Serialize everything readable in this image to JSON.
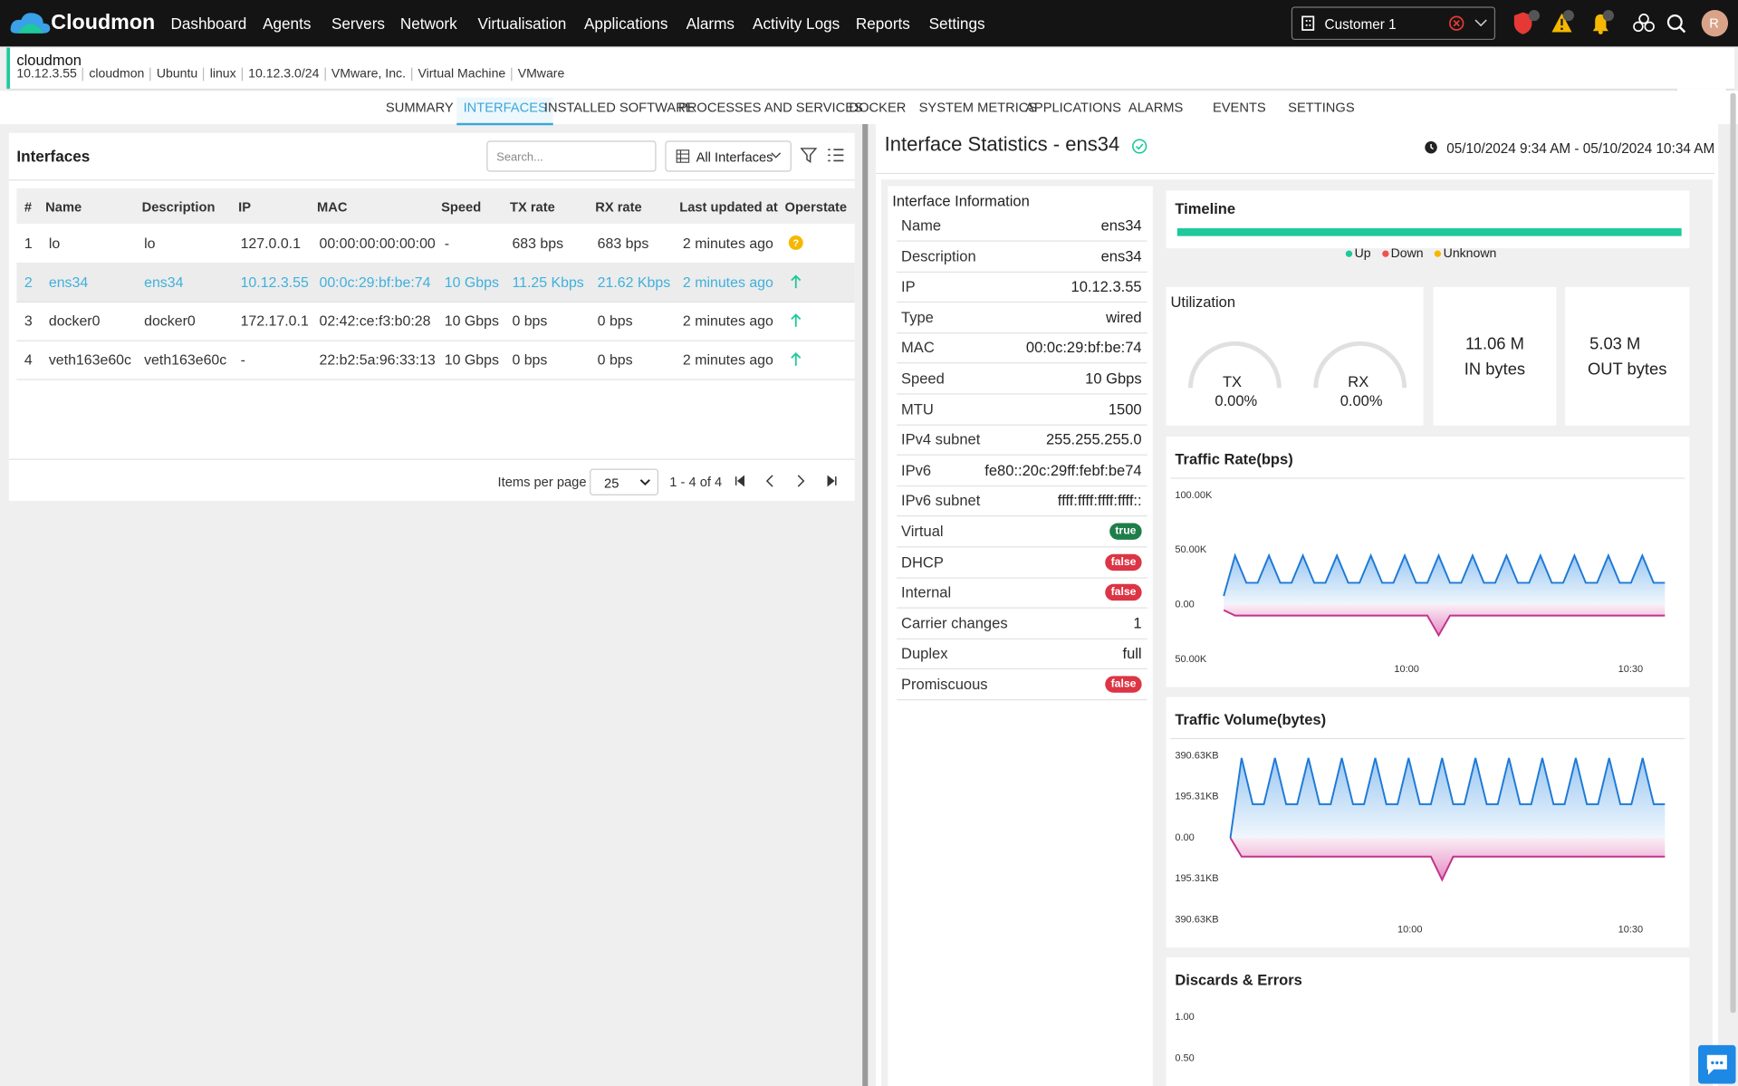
{
  "nav": {
    "brand": "Cloudmon",
    "items": [
      "Dashboard",
      "Agents",
      "Servers",
      "Network",
      "Virtualisation",
      "Applications",
      "Alarms",
      "Activity Logs",
      "Reports",
      "Settings"
    ],
    "customer": "Customer 1",
    "avatar": "R"
  },
  "host": {
    "name": "cloudmon",
    "details": [
      "10.12.3.55",
      "cloudmon",
      "Ubuntu",
      "linux",
      "10.12.3.0/24",
      "VMware, Inc.",
      "Virtual Machine",
      "VMware"
    ]
  },
  "tabs": {
    "items": [
      "SUMMARY",
      "INTERFACES",
      "INSTALLED SOFTWARE",
      "PROCESSES AND SERVICES",
      "DOCKER",
      "SYSTEM METRICS",
      "APPLICATIONS",
      "ALARMS",
      "EVENTS",
      "SETTINGS"
    ],
    "active": 1
  },
  "interfaces": {
    "title": "Interfaces",
    "search_placeholder": "Search...",
    "filter": "All Interfaces",
    "columns": [
      "#",
      "Name",
      "Description",
      "IP",
      "MAC",
      "Speed",
      "TX rate",
      "RX rate",
      "Last updated at",
      "Operstate"
    ],
    "rows": [
      [
        "1",
        "lo",
        "lo",
        "127.0.0.1",
        "00:00:00:00:00:00",
        "-",
        "683 bps",
        "683 bps",
        "2 minutes ago"
      ],
      [
        "2",
        "ens34",
        "ens34",
        "10.12.3.55",
        "00:0c:29:bf:be:74",
        "10 Gbps",
        "11.25 Kbps",
        "21.62 Kbps",
        "2 minutes ago"
      ],
      [
        "3",
        "docker0",
        "docker0",
        "172.17.0.1",
        "02:42:ce:f3:b0:28",
        "10 Gbps",
        "0 bps",
        "0 bps",
        "2 minutes ago"
      ],
      [
        "4",
        "veth163e60c",
        "veth163e60c",
        "-",
        "22:b2:5a:96:33:13",
        "10 Gbps",
        "0 bps",
        "0 bps",
        "2 minutes ago"
      ]
    ],
    "selected": 1,
    "pagination": {
      "label": "Items per page",
      "size": "25",
      "range": "1 - 4 of 4"
    }
  },
  "stats": {
    "title": "Interface Statistics - ens34",
    "time_range": "05/10/2024 9:34 AM - 05/10/2024 10:34 AM",
    "info": {
      "title": "Interface Information",
      "rows": [
        {
          "label": "Name",
          "value": "ens34"
        },
        {
          "label": "Description",
          "value": "ens34"
        },
        {
          "label": "IP",
          "value": "10.12.3.55"
        },
        {
          "label": "Type",
          "value": "wired"
        },
        {
          "label": "MAC",
          "value": "00:0c:29:bf:be:74"
        },
        {
          "label": "Speed",
          "value": "10 Gbps"
        },
        {
          "label": "MTU",
          "value": "1500"
        },
        {
          "label": "IPv4 subnet",
          "value": "255.255.255.0"
        },
        {
          "label": "IPv6",
          "value": "fe80::20c:29ff:febf:be74"
        },
        {
          "label": "IPv6 subnet",
          "value": "ffff:ffff:ffff:ffff::"
        },
        {
          "label": "Virtual",
          "value": "true",
          "badge": "#1e7e4a"
        },
        {
          "label": "DHCP",
          "value": "false",
          "badge": "#dc3545"
        },
        {
          "label": "Internal",
          "value": "false",
          "badge": "#dc3545"
        },
        {
          "label": "Carrier changes",
          "value": "1"
        },
        {
          "label": "Duplex",
          "value": "full"
        },
        {
          "label": "Promiscuous",
          "value": "false",
          "badge": "#dc3545"
        }
      ]
    },
    "timeline": {
      "title": "Timeline",
      "legend": [
        {
          "name": "Up",
          "color": "#1ec99a"
        },
        {
          "name": "Down",
          "color": "#ef5350"
        },
        {
          "name": "Unknown",
          "color": "#f5b800"
        }
      ]
    },
    "utilization": {
      "title": "Utilization",
      "tx_label": "TX",
      "tx_value": "0.00%",
      "rx_label": "RX",
      "rx_value": "0.00%"
    },
    "in_bytes": {
      "value": "11.06 M",
      "label": "IN bytes"
    },
    "out_bytes": {
      "value": "5.03 M",
      "label": "OUT bytes"
    },
    "traffic_rate": {
      "title": "Traffic Rate(bps)",
      "ylim": [
        -50000,
        100000
      ],
      "yticks": [
        {
          "value": 100000,
          "label": "100.00K"
        },
        {
          "value": 50000,
          "label": "50.00K"
        },
        {
          "value": 0,
          "label": "0.00"
        },
        {
          "value": -50000,
          "label": "50.00K"
        }
      ],
      "xtick_labels": [
        "10:00",
        "10:30"
      ],
      "series": [
        {
          "color": "#1e7ad6",
          "fill": "#9cc8f2",
          "values": [
            8000,
            45000,
            20000,
            20000,
            45000,
            20000,
            20000,
            45000,
            20000,
            20000,
            45000,
            20000,
            20000,
            45000,
            20000,
            20000,
            45000,
            20000,
            20000,
            45000,
            20000,
            20000,
            45000,
            20000,
            20000,
            45000,
            20000,
            20000,
            45000,
            20000,
            20000,
            45000,
            20000,
            20000,
            45000,
            20000,
            20000,
            45000,
            20000,
            20000
          ]
        },
        {
          "color": "#c2338a",
          "fill": "#e58cc4",
          "values": [
            -5000,
            -10000,
            -10000,
            -10000,
            -10000,
            -10000,
            -10000,
            -10000,
            -10000,
            -10000,
            -10000,
            -10000,
            -10000,
            -10000,
            -10000,
            -10000,
            -10000,
            -10000,
            -10000,
            -28000,
            -10000,
            -10000,
            -10000,
            -10000,
            -10000,
            -10000,
            -10000,
            -10000,
            -10000,
            -10000,
            -10000,
            -10000,
            -10000,
            -10000,
            -10000,
            -10000,
            -10000,
            -10000,
            -10000,
            -10000
          ]
        }
      ]
    },
    "traffic_volume": {
      "title": "Traffic Volume(bytes)",
      "ylim": [
        -390630,
        390630
      ],
      "yticks": [
        {
          "value": 390630,
          "label": "390.63KB"
        },
        {
          "value": 195310,
          "label": "195.31KB"
        },
        {
          "value": 0,
          "label": "0.00"
        },
        {
          "value": -195310,
          "label": "195.31KB"
        },
        {
          "value": -390630,
          "label": "390.63KB"
        }
      ],
      "xtick_labels": [
        "10:00",
        "10:30"
      ],
      "series": [
        {
          "color": "#1e7ad6",
          "fill": "#9cc8f2",
          "values": [
            0,
            380000,
            160000,
            160000,
            380000,
            160000,
            160000,
            380000,
            160000,
            160000,
            380000,
            160000,
            160000,
            380000,
            160000,
            160000,
            380000,
            160000,
            160000,
            380000,
            160000,
            160000,
            380000,
            160000,
            160000,
            380000,
            160000,
            160000,
            380000,
            160000,
            160000,
            380000,
            160000,
            160000,
            380000,
            160000,
            160000,
            380000,
            160000,
            160000
          ]
        },
        {
          "color": "#c2338a",
          "fill": "#e58cc4",
          "values": [
            0,
            -90000,
            -90000,
            -90000,
            -90000,
            -90000,
            -90000,
            -90000,
            -90000,
            -90000,
            -90000,
            -90000,
            -90000,
            -90000,
            -90000,
            -90000,
            -90000,
            -90000,
            -90000,
            -200000,
            -90000,
            -90000,
            -90000,
            -90000,
            -90000,
            -90000,
            -90000,
            -90000,
            -90000,
            -90000,
            -90000,
            -90000,
            -90000,
            -90000,
            -90000,
            -90000,
            -90000,
            -90000,
            -90000,
            -90000
          ]
        }
      ]
    },
    "discards": {
      "title": "Discards & Errors",
      "ylim": [
        0,
        1
      ],
      "yticks": [
        {
          "value": 1,
          "label": "1.00"
        },
        {
          "value": 0.5,
          "label": "0.50"
        }
      ]
    }
  }
}
